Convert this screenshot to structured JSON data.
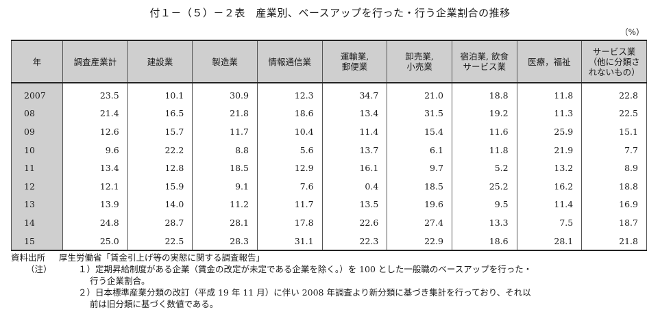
{
  "title": "付１－（５）－２表　産業別、ベースアップを行った・行う企業割合の推移",
  "unit": "（%）",
  "columns": [
    "年",
    "調査産業計",
    "建設業",
    "製造業",
    "情報通信業",
    "運輸業,\n郵便業",
    "卸売業,\n小売業",
    "宿泊業, 飲食\nサービス業",
    "医療，福祉",
    "サービス業\n（他に分類さ\nれないもの）"
  ],
  "rows": [
    {
      "year": "2007",
      "values": [
        "23.5",
        "10.1",
        "30.9",
        "12.3",
        "34.7",
        "21.0",
        "18.8",
        "11.8",
        "22.8"
      ]
    },
    {
      "year": "08",
      "values": [
        "21.4",
        "16.5",
        "21.8",
        "18.6",
        "13.4",
        "31.5",
        "19.2",
        "11.3",
        "22.5"
      ]
    },
    {
      "year": "09",
      "values": [
        "12.6",
        "15.7",
        "11.7",
        "10.4",
        "11.4",
        "15.4",
        "11.6",
        "25.9",
        "15.1"
      ]
    },
    {
      "year": "10",
      "values": [
        "9.6",
        "22.2",
        "8.8",
        "5.6",
        "13.7",
        "6.1",
        "11.8",
        "21.9",
        "7.7"
      ]
    },
    {
      "year": "11",
      "values": [
        "13.4",
        "12.8",
        "18.5",
        "12.9",
        "16.1",
        "9.7",
        "5.2",
        "13.2",
        "8.9"
      ]
    },
    {
      "year": "12",
      "values": [
        "12.1",
        "15.9",
        "9.1",
        "7.6",
        "0.4",
        "18.5",
        "25.2",
        "16.2",
        "18.8"
      ]
    },
    {
      "year": "13",
      "values": [
        "13.9",
        "14.0",
        "11.2",
        "11.7",
        "13.5",
        "19.6",
        "9.5",
        "11.4",
        "16.9"
      ]
    },
    {
      "year": "14",
      "values": [
        "24.8",
        "28.7",
        "28.1",
        "17.8",
        "22.6",
        "27.4",
        "13.3",
        "7.5",
        "18.7"
      ]
    },
    {
      "year": "15",
      "values": [
        "25.0",
        "22.5",
        "28.3",
        "31.1",
        "22.3",
        "22.9",
        "18.6",
        "28.1",
        "21.8"
      ]
    }
  ],
  "source": {
    "label": "資料出所",
    "text": "厚生労働省「賃金引上げ等の実態に関する調査報告」"
  },
  "notes": {
    "label": "（注）",
    "n1_line1": "１）定期昇給制度がある企業（賃金の改定が未定である企業を除く。）を 100 とした一般職のベースアップを行った・",
    "n1_line2": "行う企業割合。",
    "n2_line1": "２）日本標準産業分類の改訂（平成 19 年 11 月）に伴い 2008 年調査より新分類に基づき集計を行っており、それ以",
    "n2_line2": "前は旧分類に基づく数値である。"
  }
}
